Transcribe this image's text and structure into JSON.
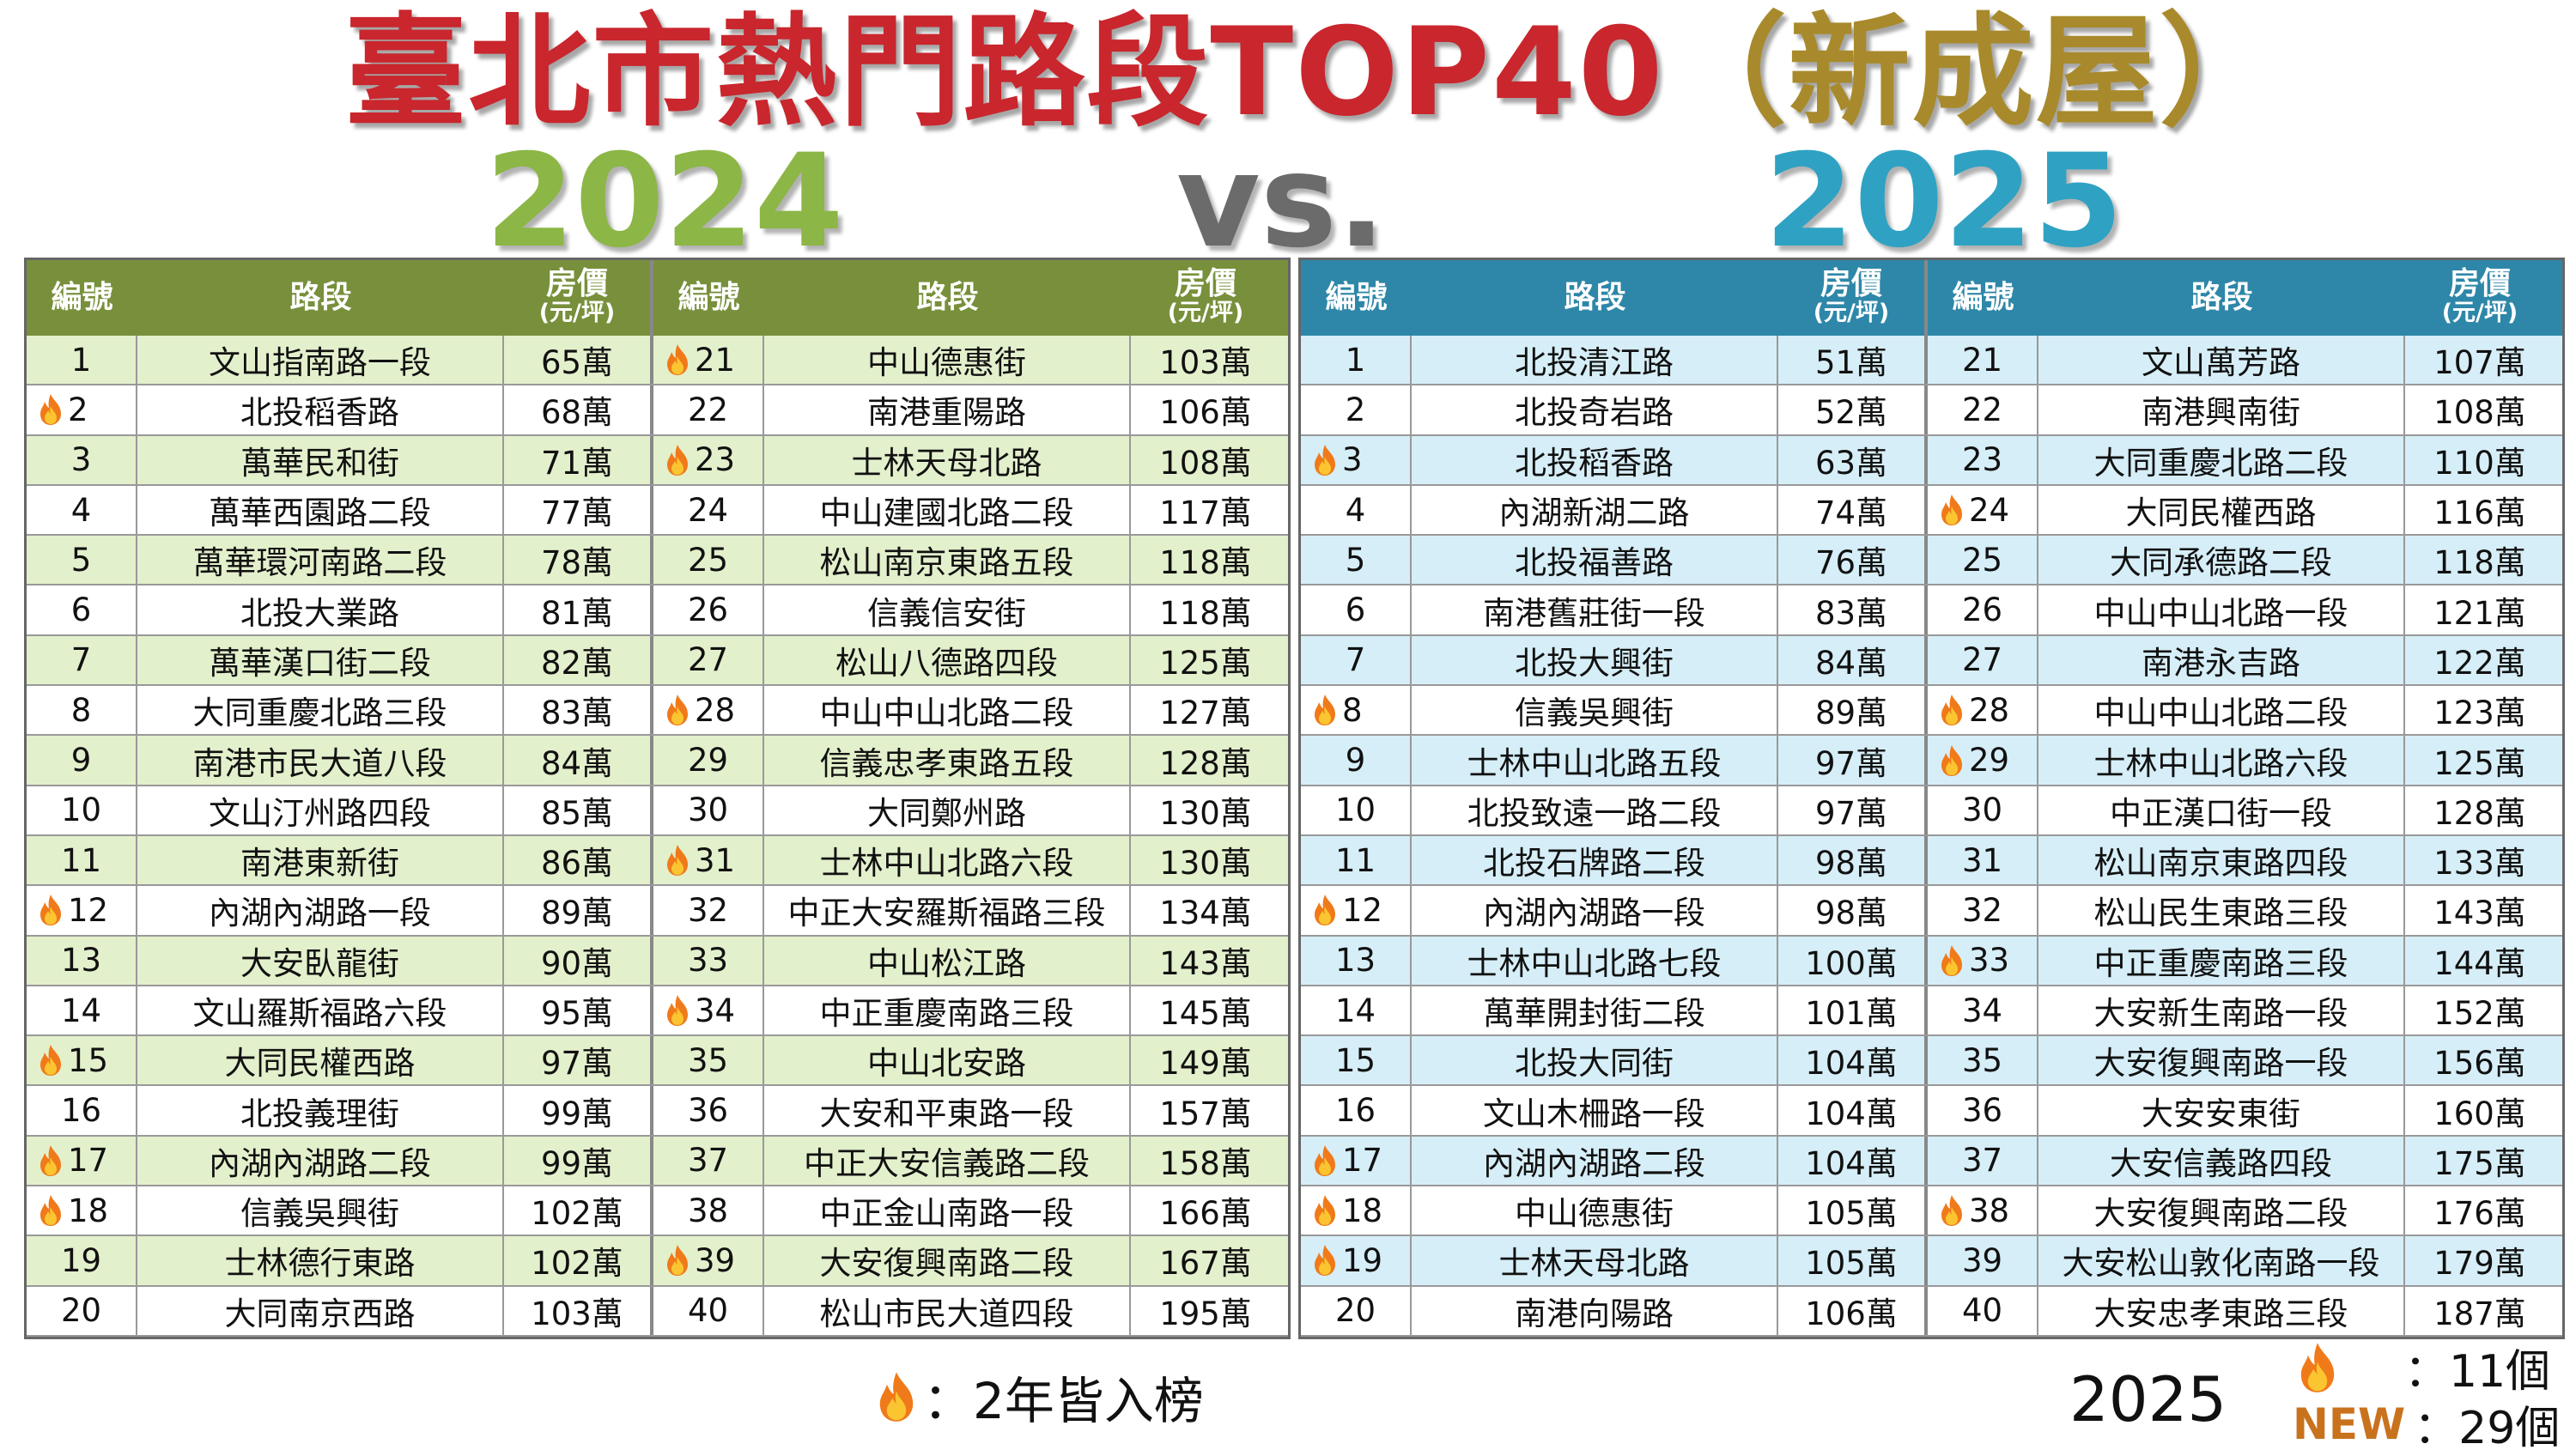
{
  "title": {
    "main": "臺北市熱門路段TOP40",
    "paren_open": "（",
    "sub": "新成屋",
    "paren_close": "）"
  },
  "year_left": "2024",
  "vs": "vs.",
  "year_right": "2025",
  "headers": {
    "no": "編號",
    "road": "路段",
    "price": "房價",
    "price_unit": "(元/坪)"
  },
  "colors": {
    "title_red": "#c9262d",
    "title_gold": "#a88a2c",
    "green": "#8cb646",
    "teal": "#2fa2c3"
  },
  "icon": "fire-icon",
  "table_2024": [
    {
      "no": "1",
      "road": "文山指南路一段",
      "price": "65萬",
      "fire": false
    },
    {
      "no": "2",
      "road": "北投稻香路",
      "price": "68萬",
      "fire": true
    },
    {
      "no": "3",
      "road": "萬華民和街",
      "price": "71萬",
      "fire": false
    },
    {
      "no": "4",
      "road": "萬華西園路二段",
      "price": "77萬",
      "fire": false
    },
    {
      "no": "5",
      "road": "萬華環河南路二段",
      "price": "78萬",
      "fire": false
    },
    {
      "no": "6",
      "road": "北投大業路",
      "price": "81萬",
      "fire": false
    },
    {
      "no": "7",
      "road": "萬華漢口街二段",
      "price": "82萬",
      "fire": false
    },
    {
      "no": "8",
      "road": "大同重慶北路三段",
      "price": "83萬",
      "fire": false
    },
    {
      "no": "9",
      "road": "南港市民大道八段",
      "price": "84萬",
      "fire": false
    },
    {
      "no": "10",
      "road": "文山汀州路四段",
      "price": "85萬",
      "fire": false
    },
    {
      "no": "11",
      "road": "南港東新街",
      "price": "86萬",
      "fire": false
    },
    {
      "no": "12",
      "road": "內湖內湖路一段",
      "price": "89萬",
      "fire": true
    },
    {
      "no": "13",
      "road": "大安臥龍街",
      "price": "90萬",
      "fire": false
    },
    {
      "no": "14",
      "road": "文山羅斯福路六段",
      "price": "95萬",
      "fire": false
    },
    {
      "no": "15",
      "road": "大同民權西路",
      "price": "97萬",
      "fire": true
    },
    {
      "no": "16",
      "road": "北投義理街",
      "price": "99萬",
      "fire": false
    },
    {
      "no": "17",
      "road": "內湖內湖路二段",
      "price": "99萬",
      "fire": true
    },
    {
      "no": "18",
      "road": "信義吳興街",
      "price": "102萬",
      "fire": true
    },
    {
      "no": "19",
      "road": "士林德行東路",
      "price": "102萬",
      "fire": false
    },
    {
      "no": "20",
      "road": "大同南京西路",
      "price": "103萬",
      "fire": false
    },
    {
      "no": "21",
      "road": "中山德惠街",
      "price": "103萬",
      "fire": true
    },
    {
      "no": "22",
      "road": "南港重陽路",
      "price": "106萬",
      "fire": false
    },
    {
      "no": "23",
      "road": "士林天母北路",
      "price": "108萬",
      "fire": true
    },
    {
      "no": "24",
      "road": "中山建國北路二段",
      "price": "117萬",
      "fire": false
    },
    {
      "no": "25",
      "road": "松山南京東路五段",
      "price": "118萬",
      "fire": false
    },
    {
      "no": "26",
      "road": "信義信安街",
      "price": "118萬",
      "fire": false
    },
    {
      "no": "27",
      "road": "松山八德路四段",
      "price": "125萬",
      "fire": false
    },
    {
      "no": "28",
      "road": "中山中山北路二段",
      "price": "127萬",
      "fire": true
    },
    {
      "no": "29",
      "road": "信義忠孝東路五段",
      "price": "128萬",
      "fire": false
    },
    {
      "no": "30",
      "road": "大同鄭州路",
      "price": "130萬",
      "fire": false
    },
    {
      "no": "31",
      "road": "士林中山北路六段",
      "price": "130萬",
      "fire": true
    },
    {
      "no": "32",
      "road": "中正大安羅斯福路三段",
      "price": "134萬",
      "fire": false
    },
    {
      "no": "33",
      "road": "中山松江路",
      "price": "143萬",
      "fire": false
    },
    {
      "no": "34",
      "road": "中正重慶南路三段",
      "price": "145萬",
      "fire": true
    },
    {
      "no": "35",
      "road": "中山北安路",
      "price": "149萬",
      "fire": false
    },
    {
      "no": "36",
      "road": "大安和平東路一段",
      "price": "157萬",
      "fire": false
    },
    {
      "no": "37",
      "road": "中正大安信義路二段",
      "price": "158萬",
      "fire": false
    },
    {
      "no": "38",
      "road": "中正金山南路一段",
      "price": "166萬",
      "fire": false
    },
    {
      "no": "39",
      "road": "大安復興南路二段",
      "price": "167萬",
      "fire": true
    },
    {
      "no": "40",
      "road": "松山市民大道四段",
      "price": "195萬",
      "fire": false
    }
  ],
  "table_2025": [
    {
      "no": "1",
      "road": "北投清江路",
      "price": "51萬",
      "fire": false
    },
    {
      "no": "2",
      "road": "北投奇岩路",
      "price": "52萬",
      "fire": false
    },
    {
      "no": "3",
      "road": "北投稻香路",
      "price": "63萬",
      "fire": true
    },
    {
      "no": "4",
      "road": "內湖新湖二路",
      "price": "74萬",
      "fire": false
    },
    {
      "no": "5",
      "road": "北投福善路",
      "price": "76萬",
      "fire": false
    },
    {
      "no": "6",
      "road": "南港舊莊街一段",
      "price": "83萬",
      "fire": false
    },
    {
      "no": "7",
      "road": "北投大興街",
      "price": "84萬",
      "fire": false
    },
    {
      "no": "8",
      "road": "信義吳興街",
      "price": "89萬",
      "fire": true
    },
    {
      "no": "9",
      "road": "士林中山北路五段",
      "price": "97萬",
      "fire": false
    },
    {
      "no": "10",
      "road": "北投致遠一路二段",
      "price": "97萬",
      "fire": false
    },
    {
      "no": "11",
      "road": "北投石牌路二段",
      "price": "98萬",
      "fire": false
    },
    {
      "no": "12",
      "road": "內湖內湖路一段",
      "price": "98萬",
      "fire": true
    },
    {
      "no": "13",
      "road": "士林中山北路七段",
      "price": "100萬",
      "fire": false
    },
    {
      "no": "14",
      "road": "萬華開封街二段",
      "price": "101萬",
      "fire": false
    },
    {
      "no": "15",
      "road": "北投大同街",
      "price": "104萬",
      "fire": false
    },
    {
      "no": "16",
      "road": "文山木柵路一段",
      "price": "104萬",
      "fire": false
    },
    {
      "no": "17",
      "road": "內湖內湖路二段",
      "price": "104萬",
      "fire": true
    },
    {
      "no": "18",
      "road": "中山德惠街",
      "price": "105萬",
      "fire": true
    },
    {
      "no": "19",
      "road": "士林天母北路",
      "price": "105萬",
      "fire": true
    },
    {
      "no": "20",
      "road": "南港向陽路",
      "price": "106萬",
      "fire": false
    },
    {
      "no": "21",
      "road": "文山萬芳路",
      "price": "107萬",
      "fire": false
    },
    {
      "no": "22",
      "road": "南港興南街",
      "price": "108萬",
      "fire": false
    },
    {
      "no": "23",
      "road": "大同重慶北路二段",
      "price": "110萬",
      "fire": false
    },
    {
      "no": "24",
      "road": "大同民權西路",
      "price": "116萬",
      "fire": true
    },
    {
      "no": "25",
      "road": "大同承德路二段",
      "price": "118萬",
      "fire": false
    },
    {
      "no": "26",
      "road": "中山中山北路一段",
      "price": "121萬",
      "fire": false
    },
    {
      "no": "27",
      "road": "南港永吉路",
      "price": "122萬",
      "fire": false
    },
    {
      "no": "28",
      "road": "中山中山北路二段",
      "price": "123萬",
      "fire": true
    },
    {
      "no": "29",
      "road": "士林中山北路六段",
      "price": "125萬",
      "fire": true
    },
    {
      "no": "30",
      "road": "中正漢口街一段",
      "price": "128萬",
      "fire": false
    },
    {
      "no": "31",
      "road": "松山南京東路四段",
      "price": "133萬",
      "fire": false
    },
    {
      "no": "32",
      "road": "松山民生東路三段",
      "price": "143萬",
      "fire": false
    },
    {
      "no": "33",
      "road": "中正重慶南路三段",
      "price": "144萬",
      "fire": true
    },
    {
      "no": "34",
      "road": "大安新生南路一段",
      "price": "152萬",
      "fire": false
    },
    {
      "no": "35",
      "road": "大安復興南路一段",
      "price": "156萬",
      "fire": false
    },
    {
      "no": "36",
      "road": "大安安東街",
      "price": "160萬",
      "fire": false
    },
    {
      "no": "37",
      "road": "大安信義路四段",
      "price": "175萬",
      "fire": false
    },
    {
      "no": "38",
      "road": "大安復興南路二段",
      "price": "176萬",
      "fire": true
    },
    {
      "no": "39",
      "road": "大安松山敦化南路一段",
      "price": "179萬",
      "fire": false
    },
    {
      "no": "40",
      "road": "大安忠孝東路三段",
      "price": "187萬",
      "fire": false
    }
  ],
  "legend": {
    "text": "：2年皆入榜",
    "year": "2025",
    "fire_count": "：11個",
    "new_label": "NEW",
    "new_count": "：29個"
  }
}
